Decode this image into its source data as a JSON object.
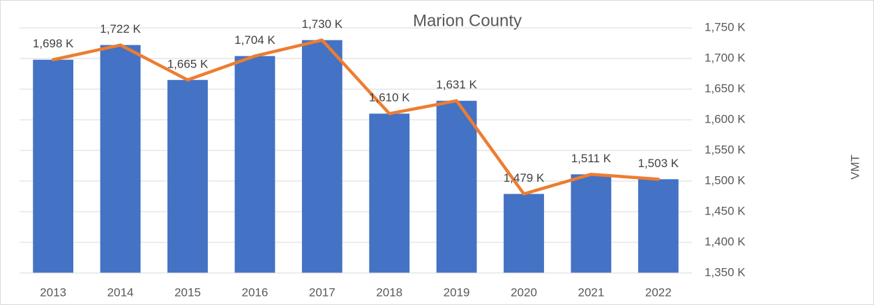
{
  "chart_data": {
    "type": "combo",
    "title": "Marion County",
    "y_label": "VMT",
    "categories": [
      "2013",
      "2014",
      "2015",
      "2016",
      "2017",
      "2018",
      "2019",
      "2020",
      "2021",
      "2022"
    ],
    "values": [
      1698,
      1722,
      1665,
      1704,
      1730,
      1610,
      1631,
      1479,
      1511,
      1503
    ],
    "value_labels": [
      "1,698 K",
      "1,722 K",
      "1,665 K",
      "1,704 K",
      "1,730 K",
      "1,610 K",
      "1,631 K",
      "1,479 K",
      "1,511 K",
      "1,503 K"
    ],
    "bar_color": "#4472c4",
    "line_color": "#ed7d31",
    "ylim": [
      1350,
      1750
    ],
    "yticks": [
      {
        "value": 1350,
        "label": "1,350 K"
      },
      {
        "value": 1400,
        "label": "1,400 K"
      },
      {
        "value": 1450,
        "label": "1,450 K"
      },
      {
        "value": 1500,
        "label": "1,500 K"
      },
      {
        "value": 1550,
        "label": "1,550 K"
      },
      {
        "value": 1600,
        "label": "1,600 K"
      },
      {
        "value": 1650,
        "label": "1,650 K"
      },
      {
        "value": 1700,
        "label": "1,700 K"
      },
      {
        "value": 1750,
        "label": "1,750 K"
      }
    ],
    "grid": true,
    "y_axis_side": "right"
  }
}
